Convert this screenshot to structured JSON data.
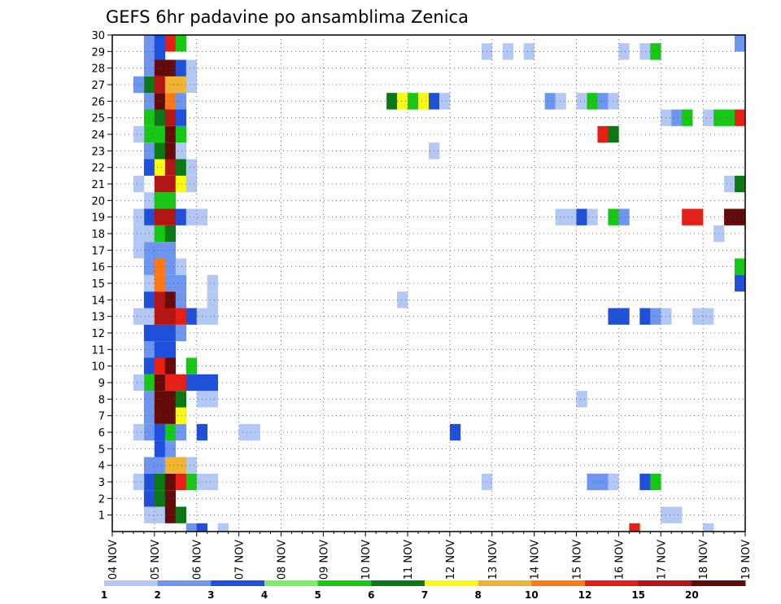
{
  "chart_data": {
    "type": "heatmap",
    "title": "GEFS 6hr padavine po ansamblima Zenica",
    "x_tick_labels": [
      "04 NOV",
      "05 NOV",
      "06 NOV",
      "07 NOV",
      "08 NOV",
      "09 NOV",
      "10 NOV",
      "11 NOV",
      "12 NOV",
      "13 NOV",
      "14 NOV",
      "15 NOV",
      "16 NOV",
      "17 NOV",
      "18 NOV",
      "19 NOV"
    ],
    "y_tick_labels": [
      "1",
      "2",
      "3",
      "4",
      "5",
      "6",
      "7",
      "8",
      "9",
      "10",
      "11",
      "12",
      "13",
      "14",
      "15",
      "16",
      "17",
      "18",
      "19",
      "20",
      "21",
      "22",
      "23",
      "24",
      "25",
      "26",
      "27",
      "28",
      "29",
      "30"
    ],
    "x_range_days": [
      4,
      19
    ],
    "y_range": [
      0,
      30
    ],
    "grid": true,
    "legend_labels": [
      "1",
      "2",
      "3",
      "4",
      "5",
      "6",
      "7",
      "8",
      "10",
      "12",
      "15",
      "20"
    ],
    "legend_colors": [
      "#b4c8f5",
      "#6e96f0",
      "#1e50dc",
      "#78f064",
      "#14c814",
      "#0a7814",
      "#fafa14",
      "#f0b432",
      "#ff7814",
      "#e61e14",
      "#b41414",
      "#640a0a"
    ],
    "cell_levels": "levels 1-12 index legend_colors (1=lightest); each cell is [day_of_month_start, member, level], 6-hour step",
    "cells": [
      [
        4.75,
        1,
        1
      ],
      [
        4.75,
        2,
        3
      ],
      [
        4.75,
        3,
        3
      ],
      [
        4.75,
        4,
        2
      ],
      [
        4.75,
        6,
        2
      ],
      [
        4.75,
        7,
        2
      ],
      [
        4.75,
        8,
        2
      ],
      [
        4.75,
        9,
        5
      ],
      [
        4.75,
        10,
        3
      ],
      [
        4.75,
        11,
        2
      ],
      [
        4.75,
        12,
        3
      ],
      [
        4.75,
        13,
        1
      ],
      [
        4.75,
        14,
        3
      ],
      [
        4.75,
        15,
        1
      ],
      [
        4.75,
        16,
        2
      ],
      [
        4.75,
        17,
        2
      ],
      [
        4.75,
        18,
        1
      ],
      [
        4.75,
        19,
        3
      ],
      [
        4.75,
        20,
        1
      ],
      [
        4.75,
        22,
        3
      ],
      [
        4.75,
        23,
        2
      ],
      [
        4.75,
        24,
        5
      ],
      [
        4.75,
        25,
        5
      ],
      [
        4.75,
        26,
        2
      ],
      [
        4.75,
        27,
        6
      ],
      [
        4.75,
        28,
        2
      ],
      [
        4.75,
        29,
        2
      ],
      [
        4.75,
        30,
        2
      ],
      [
        4.5,
        3,
        1
      ],
      [
        4.5,
        6,
        1
      ],
      [
        4.5,
        9,
        1
      ],
      [
        4.5,
        13,
        1
      ],
      [
        4.5,
        17,
        1
      ],
      [
        4.5,
        18,
        1
      ],
      [
        4.5,
        19,
        1
      ],
      [
        4.5,
        21,
        1
      ],
      [
        4.5,
        24,
        1
      ],
      [
        4.5,
        27,
        2
      ],
      [
        5.0,
        1,
        1
      ],
      [
        5.0,
        2,
        6
      ],
      [
        5.0,
        3,
        6
      ],
      [
        5.0,
        4,
        2
      ],
      [
        5.0,
        5,
        3
      ],
      [
        5.0,
        6,
        3
      ],
      [
        5.0,
        7,
        12
      ],
      [
        5.0,
        8,
        12
      ],
      [
        5.0,
        9,
        12
      ],
      [
        5.0,
        10,
        10
      ],
      [
        5.0,
        11,
        3
      ],
      [
        5.0,
        12,
        3
      ],
      [
        5.0,
        13,
        11
      ],
      [
        5.0,
        14,
        11
      ],
      [
        5.0,
        15,
        9
      ],
      [
        5.0,
        16,
        9
      ],
      [
        5.0,
        17,
        2
      ],
      [
        5.0,
        18,
        5
      ],
      [
        5.0,
        19,
        11
      ],
      [
        5.0,
        20,
        5
      ],
      [
        5.0,
        21,
        11
      ],
      [
        5.0,
        22,
        7
      ],
      [
        5.0,
        23,
        6
      ],
      [
        5.0,
        24,
        5
      ],
      [
        5.0,
        25,
        6
      ],
      [
        5.0,
        26,
        12
      ],
      [
        5.0,
        27,
        11
      ],
      [
        5.0,
        28,
        12
      ],
      [
        5.0,
        29,
        3
      ],
      [
        5.0,
        30,
        3
      ],
      [
        5.25,
        1,
        12
      ],
      [
        5.25,
        2,
        12
      ],
      [
        5.25,
        3,
        12
      ],
      [
        5.25,
        4,
        8
      ],
      [
        5.25,
        5,
        2
      ],
      [
        5.25,
        6,
        5
      ],
      [
        5.25,
        7,
        12
      ],
      [
        5.25,
        8,
        12
      ],
      [
        5.25,
        9,
        10
      ],
      [
        5.25,
        10,
        12
      ],
      [
        5.25,
        11,
        3
      ],
      [
        5.25,
        12,
        3
      ],
      [
        5.25,
        13,
        11
      ],
      [
        5.25,
        14,
        12
      ],
      [
        5.25,
        15,
        2
      ],
      [
        5.25,
        16,
        2
      ],
      [
        5.25,
        17,
        2
      ],
      [
        5.25,
        18,
        6
      ],
      [
        5.25,
        19,
        11
      ],
      [
        5.25,
        20,
        5
      ],
      [
        5.25,
        21,
        11
      ],
      [
        5.25,
        22,
        11
      ],
      [
        5.25,
        23,
        12
      ],
      [
        5.25,
        24,
        12
      ],
      [
        5.25,
        25,
        11
      ],
      [
        5.25,
        26,
        9
      ],
      [
        5.25,
        27,
        8
      ],
      [
        5.25,
        28,
        12
      ],
      [
        5.25,
        30,
        10
      ],
      [
        5.5,
        1,
        6
      ],
      [
        5.5,
        3,
        10
      ],
      [
        5.5,
        4,
        8
      ],
      [
        5.5,
        6,
        2
      ],
      [
        5.5,
        7,
        7
      ],
      [
        5.5,
        8,
        6
      ],
      [
        5.5,
        9,
        10
      ],
      [
        5.5,
        12,
        2
      ],
      [
        5.5,
        13,
        10
      ],
      [
        5.5,
        14,
        2
      ],
      [
        5.5,
        15,
        2
      ],
      [
        5.5,
        16,
        1
      ],
      [
        5.5,
        19,
        3
      ],
      [
        5.5,
        21,
        7
      ],
      [
        5.5,
        22,
        6
      ],
      [
        5.5,
        23,
        1
      ],
      [
        5.5,
        24,
        5
      ],
      [
        5.5,
        25,
        3
      ],
      [
        5.5,
        26,
        2
      ],
      [
        5.5,
        27,
        8
      ],
      [
        5.5,
        28,
        3
      ],
      [
        5.5,
        30,
        5
      ],
      [
        5.75,
        0,
        2
      ],
      [
        5.75,
        3,
        5
      ],
      [
        5.75,
        4,
        1
      ],
      [
        5.75,
        9,
        3
      ],
      [
        5.75,
        10,
        5
      ],
      [
        5.75,
        13,
        3
      ],
      [
        5.75,
        19,
        1
      ],
      [
        5.75,
        21,
        1
      ],
      [
        5.75,
        22,
        1
      ],
      [
        5.75,
        27,
        1
      ],
      [
        5.75,
        28,
        1
      ],
      [
        6.0,
        0,
        3
      ],
      [
        6.0,
        3,
        1
      ],
      [
        6.0,
        6,
        3
      ],
      [
        6.0,
        8,
        1
      ],
      [
        6.0,
        9,
        3
      ],
      [
        6.0,
        13,
        1
      ],
      [
        6.0,
        19,
        1
      ],
      [
        6.25,
        3,
        1
      ],
      [
        6.25,
        8,
        1
      ],
      [
        6.25,
        9,
        3
      ],
      [
        6.25,
        13,
        1
      ],
      [
        6.25,
        14,
        1
      ],
      [
        6.25,
        15,
        1
      ],
      [
        6.5,
        0,
        1
      ],
      [
        7.0,
        6,
        1
      ],
      [
        7.25,
        6,
        1
      ],
      [
        10.5,
        26,
        6
      ],
      [
        10.75,
        26,
        7
      ],
      [
        10.75,
        14,
        1
      ],
      [
        11.0,
        26,
        5
      ],
      [
        11.25,
        26,
        7
      ],
      [
        11.5,
        26,
        3
      ],
      [
        11.5,
        23,
        1
      ],
      [
        11.75,
        26,
        1
      ],
      [
        12.0,
        6,
        3
      ],
      [
        12.75,
        3,
        1
      ],
      [
        12.75,
        29,
        1
      ],
      [
        13.25,
        29,
        1
      ],
      [
        13.75,
        29,
        1
      ],
      [
        14.25,
        26,
        2
      ],
      [
        14.5,
        26,
        1
      ],
      [
        14.5,
        19,
        1
      ],
      [
        14.75,
        19,
        1
      ],
      [
        15.0,
        19,
        3
      ],
      [
        15.0,
        8,
        1
      ],
      [
        15.0,
        26,
        1
      ],
      [
        15.25,
        19,
        1
      ],
      [
        15.25,
        26,
        5
      ],
      [
        15.25,
        3,
        2
      ],
      [
        15.5,
        3,
        2
      ],
      [
        15.5,
        26,
        2
      ],
      [
        15.5,
        24,
        10
      ],
      [
        15.75,
        24,
        6
      ],
      [
        15.75,
        26,
        1
      ],
      [
        15.75,
        19,
        5
      ],
      [
        15.75,
        3,
        1
      ],
      [
        15.75,
        13,
        3
      ],
      [
        16.0,
        13,
        3
      ],
      [
        16.0,
        19,
        2
      ],
      [
        16.0,
        29,
        1
      ],
      [
        16.25,
        0,
        10
      ],
      [
        16.5,
        3,
        3
      ],
      [
        16.5,
        13,
        3
      ],
      [
        16.5,
        29,
        1
      ],
      [
        16.75,
        3,
        5
      ],
      [
        16.75,
        13,
        2
      ],
      [
        16.75,
        29,
        5
      ],
      [
        17.0,
        13,
        1
      ],
      [
        17.0,
        1,
        1
      ],
      [
        17.0,
        25,
        1
      ],
      [
        17.25,
        1,
        1
      ],
      [
        17.25,
        25,
        2
      ],
      [
        17.5,
        25,
        5
      ],
      [
        17.5,
        19,
        10
      ],
      [
        17.75,
        19,
        10
      ],
      [
        17.75,
        13,
        1
      ],
      [
        18.0,
        13,
        1
      ],
      [
        18.0,
        0,
        1
      ],
      [
        18.0,
        25,
        1
      ],
      [
        18.25,
        25,
        5
      ],
      [
        18.25,
        18,
        1
      ],
      [
        18.5,
        25,
        5
      ],
      [
        18.5,
        21,
        1
      ],
      [
        18.5,
        19,
        12
      ],
      [
        18.75,
        25,
        10
      ],
      [
        18.75,
        30,
        2
      ],
      [
        18.75,
        19,
        12
      ],
      [
        18.75,
        16,
        5
      ],
      [
        18.75,
        15,
        3
      ],
      [
        18.75,
        21,
        6
      ]
    ]
  }
}
